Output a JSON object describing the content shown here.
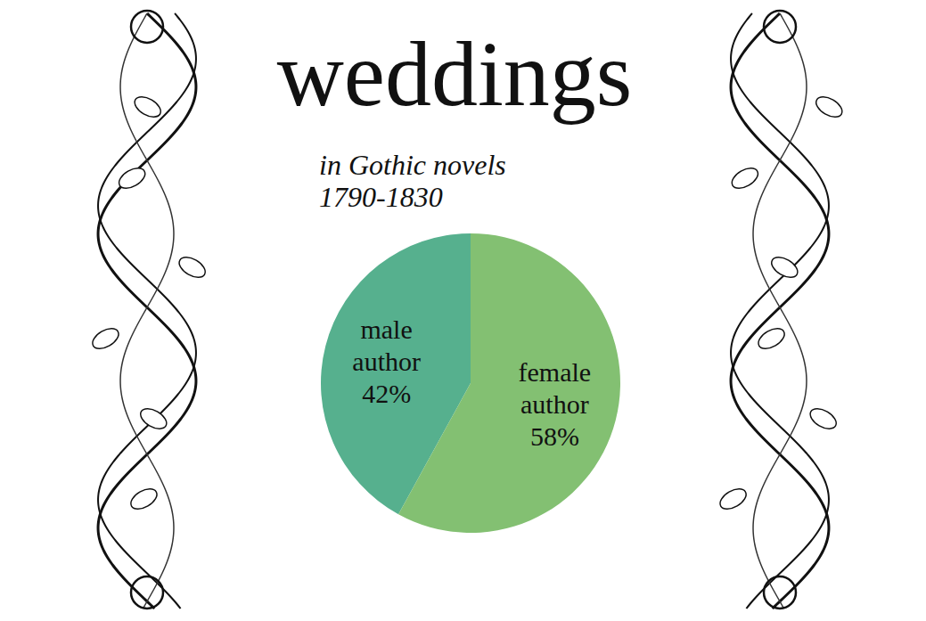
{
  "chart_data": {
    "type": "pie",
    "title": "weddings",
    "subtitle": [
      "in Gothic novels",
      "1790-1830"
    ],
    "categories": [
      "male author",
      "female author"
    ],
    "values": [
      42,
      58
    ],
    "value_labels": [
      "42%",
      "58%"
    ],
    "colors": [
      "#56b08e",
      "#83c072"
    ],
    "data_labels": true
  }
}
